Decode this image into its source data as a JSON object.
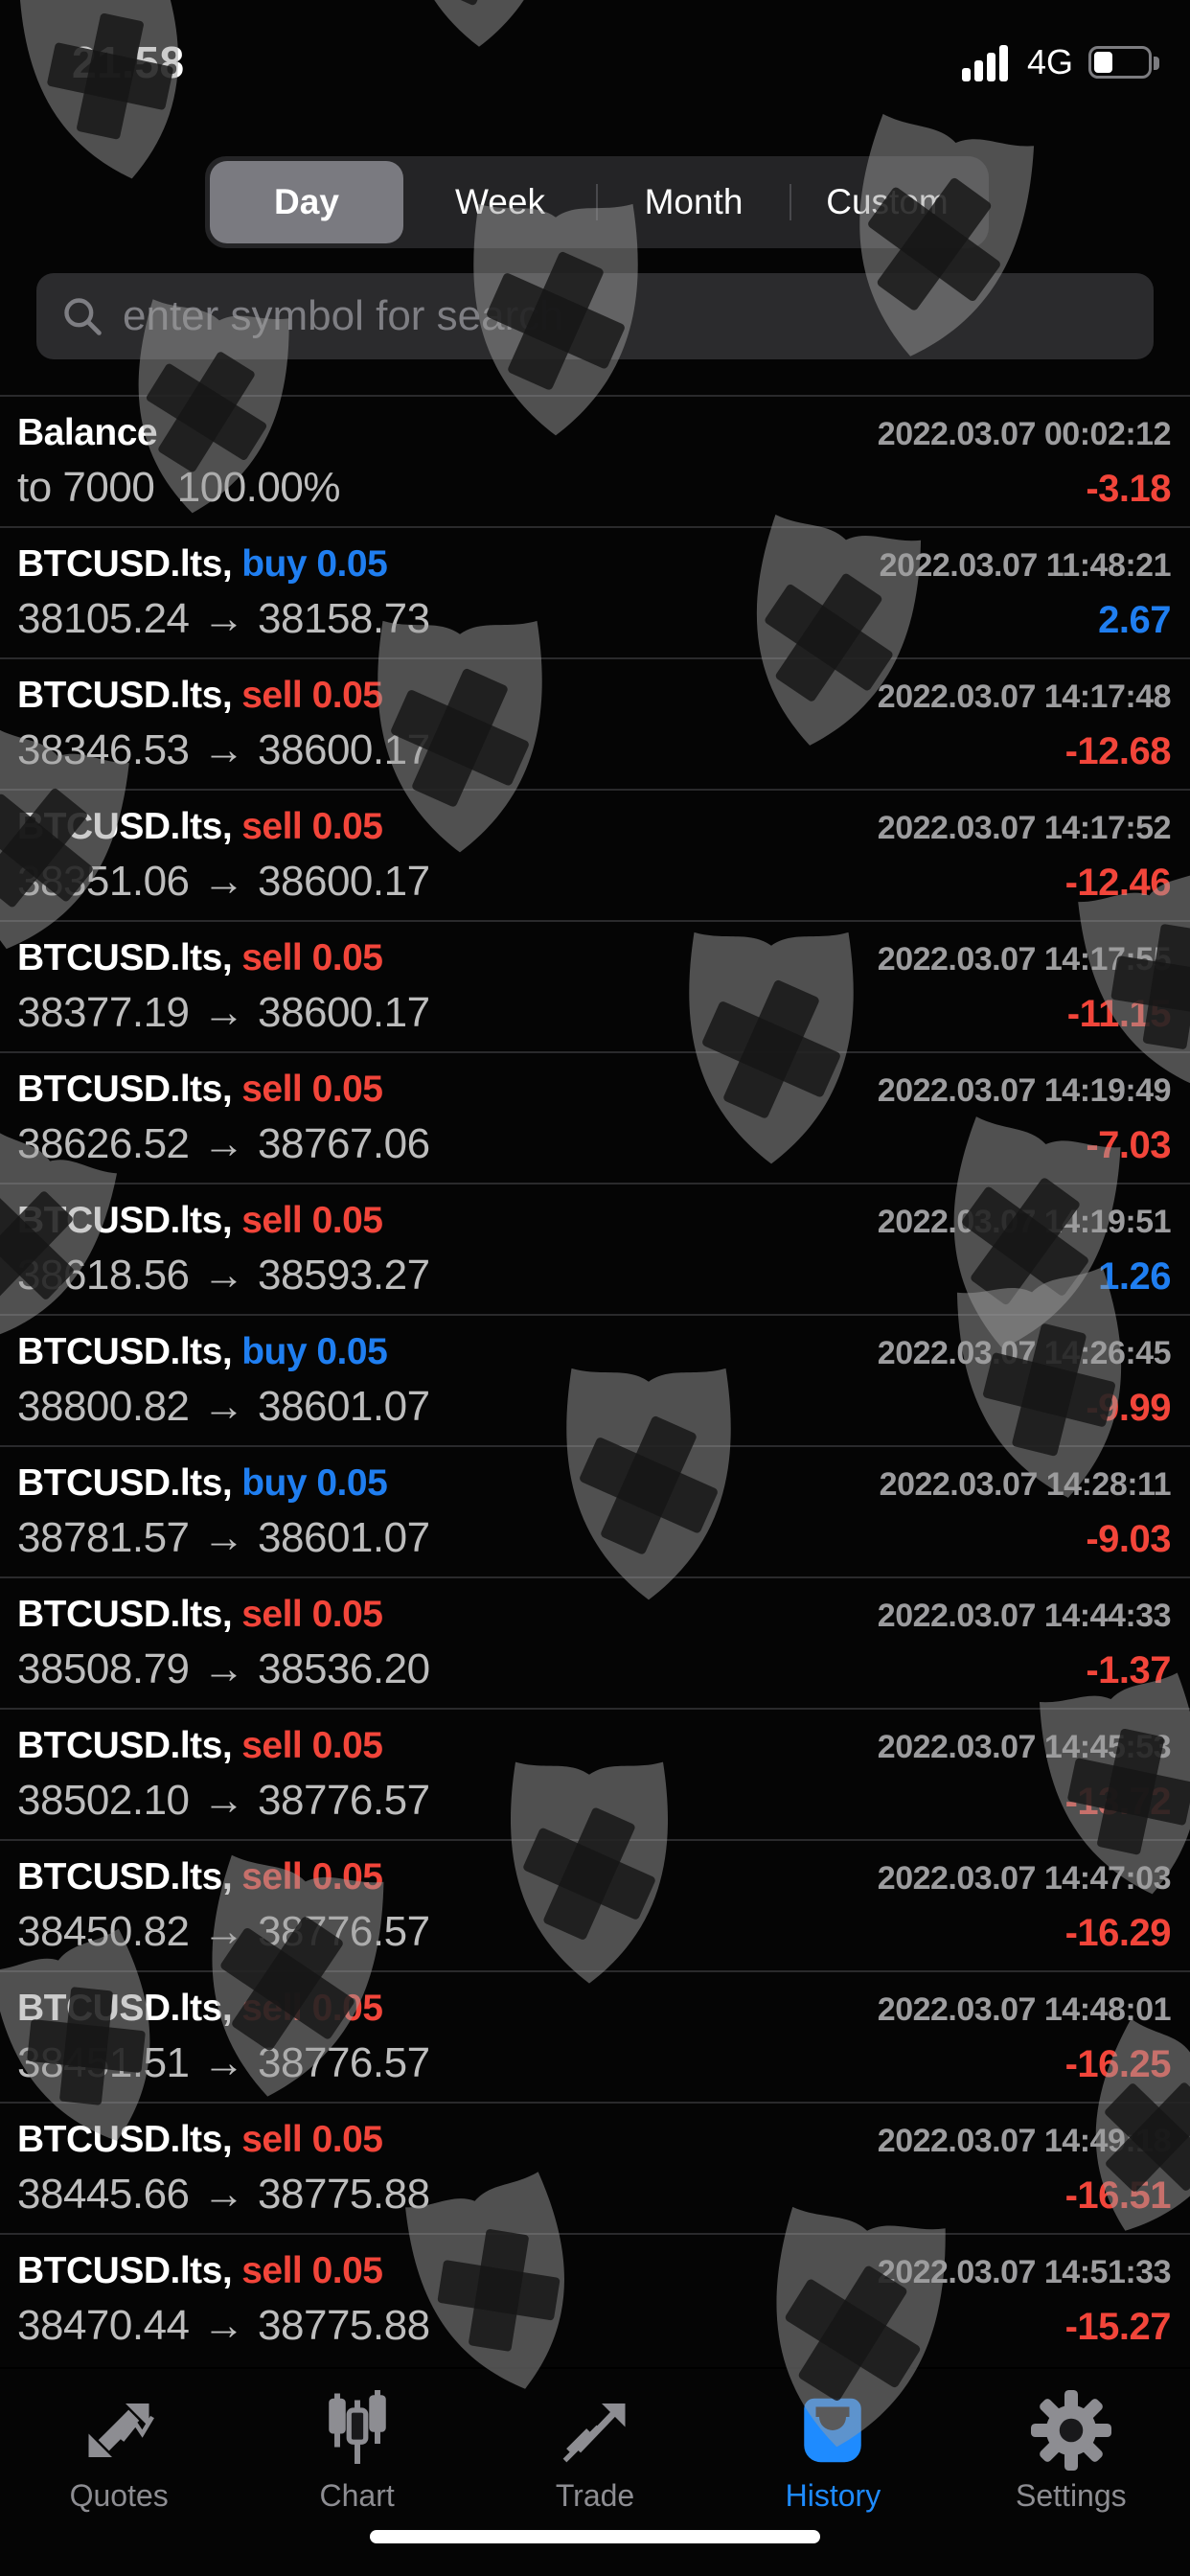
{
  "status_bar": {
    "time": "21.58",
    "network": "4G",
    "battery_percent": 35
  },
  "period_tabs": {
    "options": [
      "Day",
      "Week",
      "Month",
      "Custom"
    ],
    "selected": "Day"
  },
  "search": {
    "placeholder": "enter symbol for search"
  },
  "history": {
    "arrow_glyph": "→",
    "rows": [
      {
        "type": "balance",
        "title": "Balance",
        "detail": "to 7000  100.00%",
        "datetime": "2022.03.07 00:02:12",
        "profit": "-3.18"
      },
      {
        "type": "trade",
        "symbol": "BTCUSD.lts",
        "side": "buy",
        "volume": "0.05",
        "open": "38105.24",
        "close": "38158.73",
        "datetime": "2022.03.07 11:48:21",
        "profit": "2.67"
      },
      {
        "type": "trade",
        "symbol": "BTCUSD.lts",
        "side": "sell",
        "volume": "0.05",
        "open": "38346.53",
        "close": "38600.17",
        "datetime": "2022.03.07 14:17:48",
        "profit": "-12.68"
      },
      {
        "type": "trade",
        "symbol": "BTCUSD.lts",
        "side": "sell",
        "volume": "0.05",
        "open": "38351.06",
        "close": "38600.17",
        "datetime": "2022.03.07 14:17:52",
        "profit": "-12.46"
      },
      {
        "type": "trade",
        "symbol": "BTCUSD.lts",
        "side": "sell",
        "volume": "0.05",
        "open": "38377.19",
        "close": "38600.17",
        "datetime": "2022.03.07 14:17:55",
        "profit": "-11.15"
      },
      {
        "type": "trade",
        "symbol": "BTCUSD.lts",
        "side": "sell",
        "volume": "0.05",
        "open": "38626.52",
        "close": "38767.06",
        "datetime": "2022.03.07 14:19:49",
        "profit": "-7.03"
      },
      {
        "type": "trade",
        "symbol": "BTCUSD.lts",
        "side": "sell",
        "volume": "0.05",
        "open": "38618.56",
        "close": "38593.27",
        "datetime": "2022.03.07 14:19:51",
        "profit": "1.26"
      },
      {
        "type": "trade",
        "symbol": "BTCUSD.lts",
        "side": "buy",
        "volume": "0.05",
        "open": "38800.82",
        "close": "38601.07",
        "datetime": "2022.03.07 14:26:45",
        "profit": "-9.99"
      },
      {
        "type": "trade",
        "symbol": "BTCUSD.lts",
        "side": "buy",
        "volume": "0.05",
        "open": "38781.57",
        "close": "38601.07",
        "datetime": "2022.03.07 14:28:11",
        "profit": "-9.03"
      },
      {
        "type": "trade",
        "symbol": "BTCUSD.lts",
        "side": "sell",
        "volume": "0.05",
        "open": "38508.79",
        "close": "38536.20",
        "datetime": "2022.03.07 14:44:33",
        "profit": "-1.37"
      },
      {
        "type": "trade",
        "symbol": "BTCUSD.lts",
        "side": "sell",
        "volume": "0.05",
        "open": "38502.10",
        "close": "38776.57",
        "datetime": "2022.03.07 14:45:53",
        "profit": "-13.72"
      },
      {
        "type": "trade",
        "symbol": "BTCUSD.lts",
        "side": "sell",
        "volume": "0.05",
        "open": "38450.82",
        "close": "38776.57",
        "datetime": "2022.03.07 14:47:03",
        "profit": "-16.29"
      },
      {
        "type": "trade",
        "symbol": "BTCUSD.lts",
        "side": "sell",
        "volume": "0.05",
        "open": "38451.51",
        "close": "38776.57",
        "datetime": "2022.03.07 14:48:01",
        "profit": "-16.25"
      },
      {
        "type": "trade",
        "symbol": "BTCUSD.lts",
        "side": "sell",
        "volume": "0.05",
        "open": "38445.66",
        "close": "38775.88",
        "datetime": "2022.03.07 14:49:18",
        "profit": "-16.51"
      },
      {
        "type": "trade",
        "symbol": "BTCUSD.lts",
        "side": "sell",
        "volume": "0.05",
        "open": "38470.44",
        "close": "38775.88",
        "datetime": "2022.03.07 14:51:33",
        "profit": "-15.27"
      }
    ]
  },
  "tab_bar": {
    "items": [
      {
        "label": "Quotes",
        "icon": "quotes-icon",
        "active": false
      },
      {
        "label": "Chart",
        "icon": "chart-icon",
        "active": false
      },
      {
        "label": "Trade",
        "icon": "trade-icon",
        "active": false
      },
      {
        "label": "History",
        "icon": "history-icon",
        "active": true
      },
      {
        "label": "Settings",
        "icon": "settings-icon",
        "active": false
      }
    ]
  },
  "watermark": {
    "icon": "shield-plus-icon"
  },
  "colors": {
    "buy": "#1f7ef0",
    "sell": "#f2453a",
    "accent": "#1e8bff"
  }
}
